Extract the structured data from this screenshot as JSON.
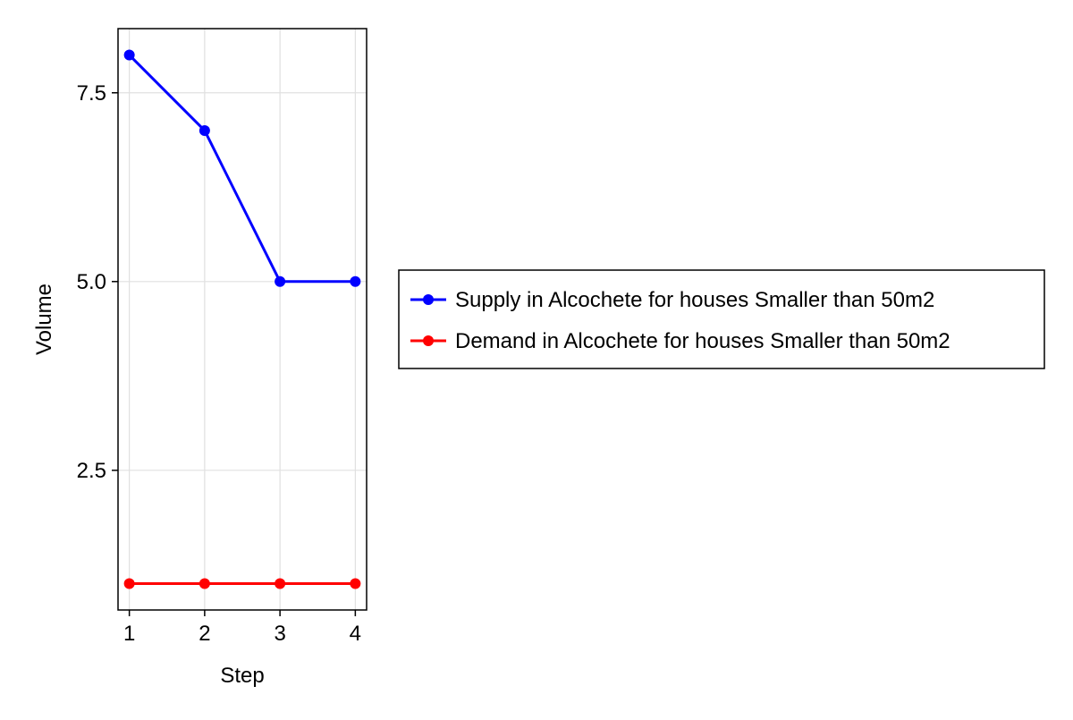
{
  "chart_data": {
    "type": "line",
    "title": "",
    "xlabel": "Step",
    "ylabel": "Volume",
    "x": [
      1,
      2,
      3,
      4
    ],
    "xticks": [
      1,
      2,
      3,
      4
    ],
    "yticks": [
      2.5,
      5.0,
      7.5
    ],
    "ytick_labels": [
      "2.5",
      "5.0",
      "7.5"
    ],
    "xlim": [
      0.85,
      4.15
    ],
    "ylim": [
      0.65,
      8.35
    ],
    "grid": true,
    "legend_position": "right",
    "series": [
      {
        "name": "Supply in Alcochete for houses Smaller than 50m2",
        "color": "#0000ff",
        "marker": "circle",
        "values": [
          8,
          7,
          5,
          5
        ]
      },
      {
        "name": "Demand in Alcochete for houses Smaller than 50m2",
        "color": "#ff0000",
        "marker": "circle",
        "values": [
          1,
          1,
          1,
          1
        ]
      }
    ]
  }
}
